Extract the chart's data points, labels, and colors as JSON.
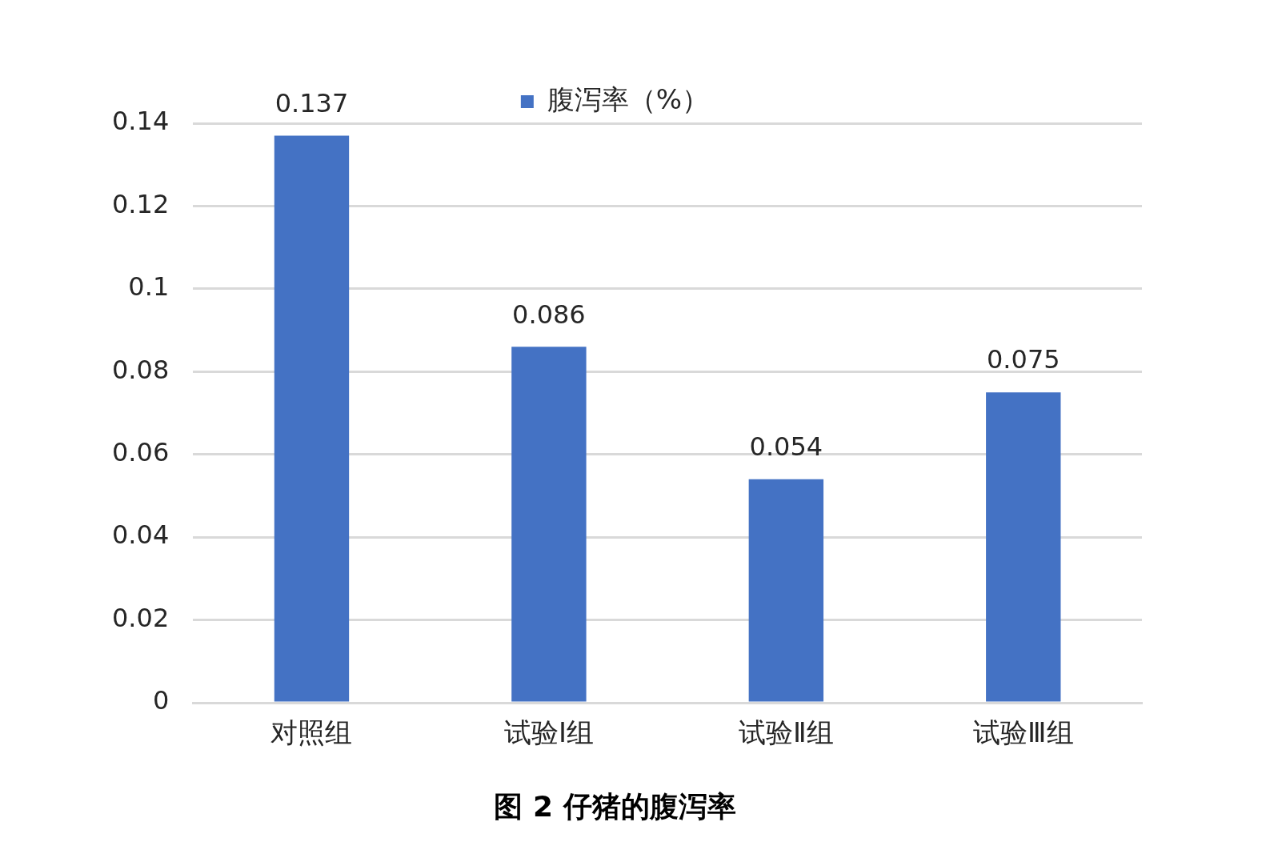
{
  "chart_data": {
    "type": "bar",
    "title": "图 2 仔猪的腹泻率",
    "categories": [
      "对照组",
      "试验Ⅰ组",
      "试验Ⅱ组",
      "试验Ⅲ组"
    ],
    "series": [
      {
        "name": "腹泻率（%）",
        "color": "#4472c4",
        "values": [
          0.137,
          0.086,
          0.054,
          0.075
        ]
      }
    ],
    "ylim": [
      0,
      0.14
    ],
    "yticks": [
      0,
      0.02,
      0.04,
      0.06,
      0.08,
      0.1,
      0.12,
      0.14
    ],
    "grid": "y",
    "legend": "top",
    "data_labels": true
  }
}
